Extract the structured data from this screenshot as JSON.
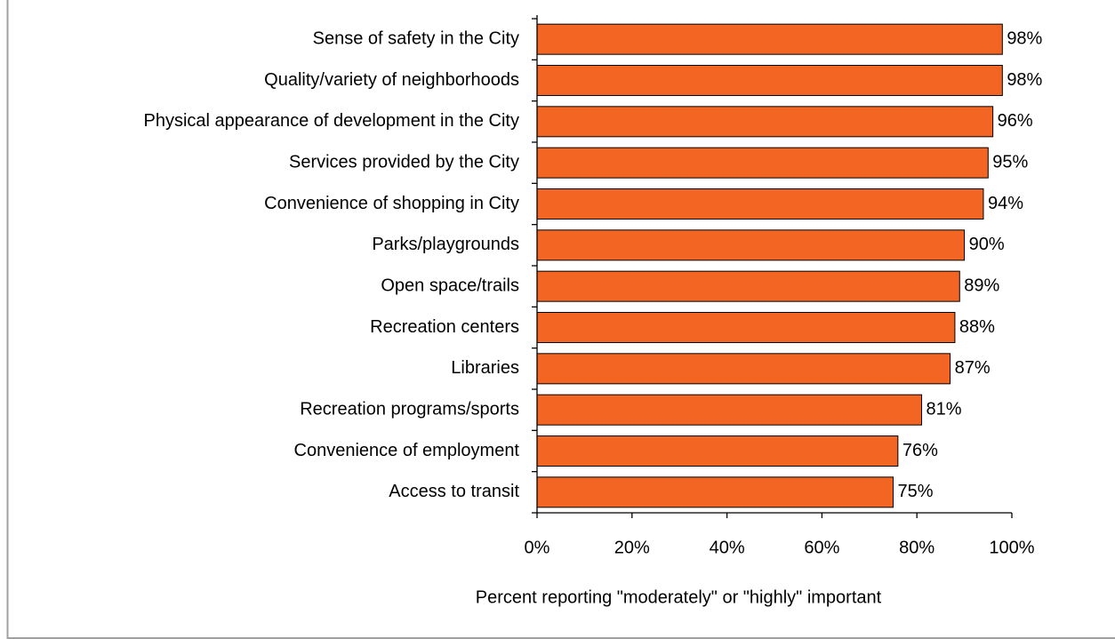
{
  "chart_data": {
    "type": "bar",
    "orientation": "horizontal",
    "x_label": "Percent reporting \"moderately\" or \"highly\" important",
    "categories": [
      "Sense of safety in the City",
      "Quality/variety of neighborhoods",
      "Physical appearance of development in the City",
      "Services provided by the City",
      "Convenience of shopping in City",
      "Parks/playgrounds",
      "Open space/trails",
      "Recreation centers",
      "Libraries",
      "Recreation programs/sports",
      "Convenience of employment",
      "Access to transit"
    ],
    "values": [
      98,
      98,
      96,
      95,
      94,
      90,
      89,
      88,
      87,
      81,
      76,
      75
    ],
    "value_labels": [
      "98%",
      "98%",
      "96%",
      "95%",
      "94%",
      "90%",
      "89%",
      "88%",
      "87%",
      "81%",
      "76%",
      "75%"
    ],
    "color": "#f26522",
    "xlim": [
      0,
      100
    ],
    "xticks": [
      {
        "value": 0,
        "label": "0%"
      },
      {
        "value": 20,
        "label": "20%"
      },
      {
        "value": 40,
        "label": "40%"
      },
      {
        "value": 60,
        "label": "60%"
      },
      {
        "value": 80,
        "label": "80%"
      },
      {
        "value": 100,
        "label": "100%"
      }
    ]
  }
}
